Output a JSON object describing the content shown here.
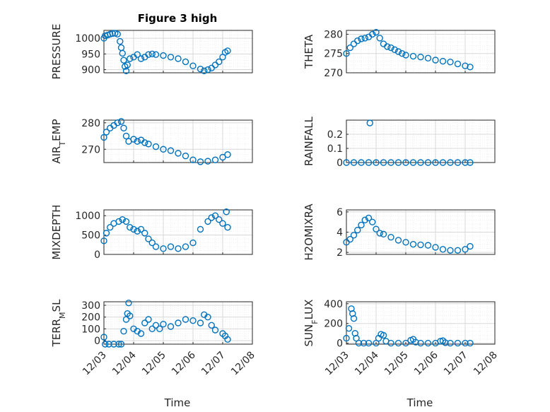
{
  "figure": {
    "title": "Figure 3 high",
    "xlabel": "Time"
  },
  "colors": {
    "marker": "#0072BD",
    "axis": "#262626",
    "grid": "#d8d8d8",
    "minorGrid": "#eeeeee"
  },
  "chart_data": [
    {
      "type": "scatter",
      "marker": "circle-open",
      "grid": true,
      "title": "Figure 3 high",
      "ylabel": "PRESSURE",
      "xlabel": "",
      "x_range": [
        "12/03",
        "12/07"
      ],
      "ylim": [
        890,
        1025
      ],
      "yticks": [
        "900",
        "950",
        "1000"
      ],
      "xticks": [],
      "points": [
        [
          "12/03 00:00",
          1000
        ],
        [
          "12/03 01:00",
          1008
        ],
        [
          "12/03 03:00",
          1010
        ],
        [
          "12/03 05:00",
          1013
        ],
        [
          "12/03 07:00",
          1015
        ],
        [
          "12/03 09:00",
          1016
        ],
        [
          "12/03 11:00",
          1013
        ],
        [
          "12/03 13:00",
          990
        ],
        [
          "12/03 14:00",
          970
        ],
        [
          "12/03 15:00",
          952
        ],
        [
          "12/03 16:00",
          930
        ],
        [
          "12/03 17:00",
          910
        ],
        [
          "12/03 18:00",
          896
        ],
        [
          "12/03 19:00",
          915
        ],
        [
          "12/03 21:00",
          935
        ],
        [
          "12/04 00:00",
          940
        ],
        [
          "12/04 03:00",
          948
        ],
        [
          "12/04 06:00",
          935
        ],
        [
          "12/04 09:00",
          940
        ],
        [
          "12/04 12:00",
          948
        ],
        [
          "12/04 15:00",
          950
        ],
        [
          "12/04 18:00",
          948
        ],
        [
          "12/05 00:00",
          945
        ],
        [
          "12/05 06:00",
          940
        ],
        [
          "12/05 12:00",
          935
        ],
        [
          "12/05 18:00",
          925
        ],
        [
          "12/06 00:00",
          912
        ],
        [
          "12/06 06:00",
          902
        ],
        [
          "12/06 09:00",
          896
        ],
        [
          "12/06 12:00",
          900
        ],
        [
          "12/06 15:00",
          905
        ],
        [
          "12/06 18:00",
          915
        ],
        [
          "12/06 21:00",
          925
        ],
        [
          "12/07 00:00",
          940
        ],
        [
          "12/07 02:00",
          955
        ],
        [
          "12/07 04:00",
          960
        ]
      ]
    },
    {
      "type": "scatter",
      "marker": "circle-open",
      "grid": true,
      "ylabel": "THETA",
      "xlabel": "",
      "x_range": [
        "12/03",
        "12/07"
      ],
      "ylim": [
        270,
        281
      ],
      "yticks": [
        "270",
        "275",
        "280"
      ],
      "xticks": [],
      "points": [
        [
          "12/03 00:00",
          275
        ],
        [
          "12/03 03:00",
          276.5
        ],
        [
          "12/03 06:00",
          277.5
        ],
        [
          "12/03 09:00",
          278.3
        ],
        [
          "12/03 12:00",
          278.8
        ],
        [
          "12/03 15:00",
          279
        ],
        [
          "12/03 18:00",
          279.3
        ],
        [
          "12/03 21:00",
          280
        ],
        [
          "12/04 00:00",
          280.5
        ],
        [
          "12/04 03:00",
          279
        ],
        [
          "12/04 06:00",
          277.5
        ],
        [
          "12/04 09:00",
          276.8
        ],
        [
          "12/04 12:00",
          276.5
        ],
        [
          "12/04 15:00",
          276
        ],
        [
          "12/04 18:00",
          275.5
        ],
        [
          "12/04 21:00",
          275
        ],
        [
          "12/05 00:00",
          274.6
        ],
        [
          "12/05 06:00",
          274.3
        ],
        [
          "12/05 12:00",
          274.1
        ],
        [
          "12/05 18:00",
          273.8
        ],
        [
          "12/06 00:00",
          273.3
        ],
        [
          "12/06 06:00",
          273
        ],
        [
          "12/06 12:00",
          272.8
        ],
        [
          "12/06 18:00",
          272.3
        ],
        [
          "12/07 00:00",
          271.8
        ],
        [
          "12/07 04:00",
          271.5
        ]
      ]
    },
    {
      "type": "scatter",
      "marker": "circle-open",
      "grid": true,
      "ylabel": "AIR_TEMP",
      "xlabel": "",
      "x_range": [
        "12/03",
        "12/07"
      ],
      "ylim": [
        265,
        281
      ],
      "yticks": [
        "270",
        "280"
      ],
      "xticks": [],
      "points": [
        [
          "12/03 00:00",
          274.5
        ],
        [
          "12/03 02:00",
          276.5
        ],
        [
          "12/03 05:00",
          278
        ],
        [
          "12/03 08:00",
          279
        ],
        [
          "12/03 11:00",
          280
        ],
        [
          "12/03 14:00",
          280.5
        ],
        [
          "12/03 16:00",
          278
        ],
        [
          "12/03 18:00",
          275
        ],
        [
          "12/03 20:00",
          273
        ],
        [
          "12/04 00:00",
          273.8
        ],
        [
          "12/04 03:00",
          273
        ],
        [
          "12/04 06:00",
          273.5
        ],
        [
          "12/04 09:00",
          272.5
        ],
        [
          "12/04 12:00",
          272
        ],
        [
          "12/04 18:00",
          271
        ],
        [
          "12/05 00:00",
          270
        ],
        [
          "12/05 06:00",
          269.5
        ],
        [
          "12/05 12:00",
          268.5
        ],
        [
          "12/05 18:00",
          267.5
        ],
        [
          "12/06 00:00",
          266
        ],
        [
          "12/06 06:00",
          265.3
        ],
        [
          "12/06 12:00",
          265.5
        ],
        [
          "12/06 18:00",
          266
        ],
        [
          "12/07 00:00",
          267
        ],
        [
          "12/07 04:00",
          268
        ]
      ]
    },
    {
      "type": "scatter",
      "marker": "circle-open",
      "grid": true,
      "ylabel": "RAINFALL",
      "xlabel": "",
      "x_range": [
        "12/03",
        "12/07"
      ],
      "ylim": [
        0,
        0.3
      ],
      "yticks": [
        "0",
        "0.1",
        "0.2"
      ],
      "xticks": [],
      "points": [
        [
          "12/03 00:00",
          0
        ],
        [
          "12/03 06:00",
          0
        ],
        [
          "12/03 12:00",
          0
        ],
        [
          "12/03 18:00",
          0
        ],
        [
          "12/03 19:00",
          0.28
        ],
        [
          "12/04 00:00",
          0
        ],
        [
          "12/04 06:00",
          0
        ],
        [
          "12/04 12:00",
          0
        ],
        [
          "12/04 18:00",
          0
        ],
        [
          "12/05 00:00",
          0
        ],
        [
          "12/05 06:00",
          0
        ],
        [
          "12/05 12:00",
          0
        ],
        [
          "12/05 18:00",
          0
        ],
        [
          "12/06 00:00",
          0
        ],
        [
          "12/06 06:00",
          0
        ],
        [
          "12/06 12:00",
          0
        ],
        [
          "12/06 18:00",
          0
        ],
        [
          "12/07 00:00",
          0
        ],
        [
          "12/07 04:00",
          0
        ]
      ]
    },
    {
      "type": "scatter",
      "marker": "circle-open",
      "grid": true,
      "ylabel": "MIXDEPTH",
      "xlabel": "",
      "x_range": [
        "12/03",
        "12/07"
      ],
      "ylim": [
        0,
        1150
      ],
      "yticks": [
        "0",
        "500",
        "1000"
      ],
      "xticks": [],
      "points": [
        [
          "12/03 00:00",
          350
        ],
        [
          "12/03 02:00",
          550
        ],
        [
          "12/03 05:00",
          700
        ],
        [
          "12/03 08:00",
          800
        ],
        [
          "12/03 12:00",
          850
        ],
        [
          "12/03 15:00",
          900
        ],
        [
          "12/03 18:00",
          850
        ],
        [
          "12/03 21:00",
          700
        ],
        [
          "12/04 00:00",
          650
        ],
        [
          "12/04 03:00",
          600
        ],
        [
          "12/04 06:00",
          650
        ],
        [
          "12/04 09:00",
          550
        ],
        [
          "12/04 12:00",
          400
        ],
        [
          "12/04 15:00",
          300
        ],
        [
          "12/04 18:00",
          200
        ],
        [
          "12/05 00:00",
          150
        ],
        [
          "12/05 06:00",
          200
        ],
        [
          "12/05 12:00",
          150
        ],
        [
          "12/05 18:00",
          200
        ],
        [
          "12/06 00:00",
          300
        ],
        [
          "12/06 06:00",
          650
        ],
        [
          "12/06 12:00",
          850
        ],
        [
          "12/06 15:00",
          950
        ],
        [
          "12/06 18:00",
          1000
        ],
        [
          "12/06 21:00",
          900
        ],
        [
          "12/07 00:00",
          800
        ],
        [
          "12/07 03:00",
          1100
        ],
        [
          "12/07 04:00",
          700
        ]
      ]
    },
    {
      "type": "scatter",
      "marker": "circle-open",
      "grid": true,
      "ylabel": "H2OMIXRA",
      "xlabel": "",
      "x_range": [
        "12/03",
        "12/07"
      ],
      "ylim": [
        1.8,
        6.2
      ],
      "yticks": [
        "2",
        "4",
        "6"
      ],
      "xticks": [],
      "points": [
        [
          "12/03 00:00",
          3
        ],
        [
          "12/03 03:00",
          3.3
        ],
        [
          "12/03 06:00",
          3.7
        ],
        [
          "12/03 09:00",
          4.2
        ],
        [
          "12/03 12:00",
          4.7
        ],
        [
          "12/03 15:00",
          5.2
        ],
        [
          "12/03 18:00",
          5.4
        ],
        [
          "12/03 21:00",
          5
        ],
        [
          "12/04 00:00",
          4.3
        ],
        [
          "12/04 03:00",
          3.9
        ],
        [
          "12/04 06:00",
          3.8
        ],
        [
          "12/04 12:00",
          3.5
        ],
        [
          "12/04 18:00",
          3.2
        ],
        [
          "12/05 00:00",
          3
        ],
        [
          "12/05 06:00",
          2.8
        ],
        [
          "12/05 12:00",
          2.75
        ],
        [
          "12/05 18:00",
          2.7
        ],
        [
          "12/06 00:00",
          2.5
        ],
        [
          "12/06 06:00",
          2.3
        ],
        [
          "12/06 12:00",
          2.2
        ],
        [
          "12/06 18:00",
          2.2
        ],
        [
          "12/07 00:00",
          2.3
        ],
        [
          "12/07 04:00",
          2.6
        ]
      ]
    },
    {
      "type": "scatter",
      "marker": "circle-open",
      "grid": true,
      "ylabel": "TERR_MSL",
      "xlabel": "Time",
      "x_range": [
        "12/03",
        "12/08"
      ],
      "ylim": [
        -30,
        330
      ],
      "yticks": [
        "0",
        "100",
        "200",
        "300"
      ],
      "xticks": [
        "12/03",
        "12/04",
        "12/05",
        "12/06",
        "12/07",
        "12/08"
      ],
      "points": [
        [
          "12/03 00:00",
          30
        ],
        [
          "12/03 01:00",
          -30
        ],
        [
          "12/03 04:00",
          -30
        ],
        [
          "12/03 08:00",
          -30
        ],
        [
          "12/03 12:00",
          -30
        ],
        [
          "12/03 14:00",
          -30
        ],
        [
          "12/03 16:00",
          80
        ],
        [
          "12/03 18:00",
          180
        ],
        [
          "12/03 19:00",
          230
        ],
        [
          "12/03 20:00",
          320
        ],
        [
          "12/03 21:00",
          210
        ],
        [
          "12/04 00:00",
          100
        ],
        [
          "12/04 03:00",
          80
        ],
        [
          "12/04 06:00",
          60
        ],
        [
          "12/04 09:00",
          150
        ],
        [
          "12/04 12:00",
          180
        ],
        [
          "12/04 15:00",
          100
        ],
        [
          "12/04 18:00",
          130
        ],
        [
          "12/04 21:00",
          100
        ],
        [
          "12/05 00:00",
          140
        ],
        [
          "12/05 06:00",
          120
        ],
        [
          "12/05 12:00",
          150
        ],
        [
          "12/05 18:00",
          180
        ],
        [
          "12/06 00:00",
          170
        ],
        [
          "12/06 06:00",
          150
        ],
        [
          "12/06 09:00",
          220
        ],
        [
          "12/06 12:00",
          200
        ],
        [
          "12/06 15:00",
          130
        ],
        [
          "12/06 18:00",
          90
        ],
        [
          "12/07 00:00",
          60
        ],
        [
          "12/07 02:00",
          40
        ],
        [
          "12/07 04:00",
          10
        ]
      ]
    },
    {
      "type": "scatter",
      "marker": "circle-open",
      "grid": true,
      "ylabel": "SUN_FLUX",
      "xlabel": "Time",
      "x_range": [
        "12/03",
        "12/08"
      ],
      "ylim": [
        -10,
        420
      ],
      "yticks": [
        "0",
        "200",
        "400"
      ],
      "xticks": [
        "12/03",
        "12/04",
        "12/05",
        "12/06",
        "12/07",
        "12/08"
      ],
      "points": [
        [
          "12/03 00:00",
          50
        ],
        [
          "12/03 02:00",
          150
        ],
        [
          "12/03 04:00",
          350
        ],
        [
          "12/03 05:00",
          300
        ],
        [
          "12/03 06:00",
          250
        ],
        [
          "12/03 07:00",
          100
        ],
        [
          "12/03 08:00",
          50
        ],
        [
          "12/03 10:00",
          0
        ],
        [
          "12/03 14:00",
          0
        ],
        [
          "12/03 18:00",
          0
        ],
        [
          "12/04 00:00",
          0
        ],
        [
          "12/04 02:00",
          50
        ],
        [
          "12/04 04:00",
          90
        ],
        [
          "12/04 06:00",
          80
        ],
        [
          "12/04 08:00",
          20
        ],
        [
          "12/04 12:00",
          0
        ],
        [
          "12/04 18:00",
          0
        ],
        [
          "12/05 00:00",
          0
        ],
        [
          "12/05 04:00",
          30
        ],
        [
          "12/05 06:00",
          40
        ],
        [
          "12/05 08:00",
          10
        ],
        [
          "12/05 12:00",
          0
        ],
        [
          "12/05 18:00",
          0
        ],
        [
          "12/06 00:00",
          0
        ],
        [
          "12/06 04:00",
          20
        ],
        [
          "12/06 06:00",
          25
        ],
        [
          "12/06 08:00",
          5
        ],
        [
          "12/06 12:00",
          0
        ],
        [
          "12/06 18:00",
          0
        ],
        [
          "12/07 00:00",
          0
        ],
        [
          "12/07 04:00",
          0
        ]
      ]
    }
  ]
}
